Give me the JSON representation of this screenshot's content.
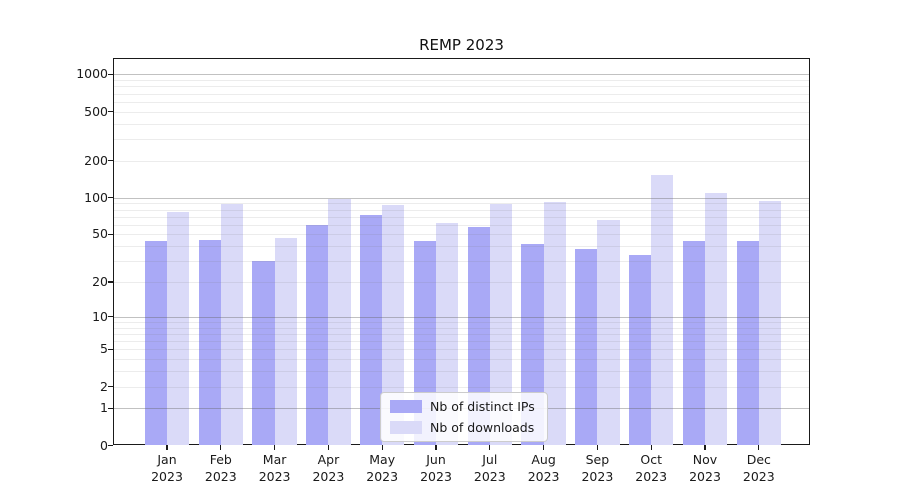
{
  "chart_data": {
    "type": "bar",
    "title": "REMP 2023",
    "categories": [
      "Jan",
      "Feb",
      "Mar",
      "Apr",
      "May",
      "Jun",
      "Jul",
      "Aug",
      "Sep",
      "Oct",
      "Nov",
      "Dec"
    ],
    "year_label": "2023",
    "series": [
      {
        "name": "Nb of distinct IPs",
        "color": "#a9a9f6",
        "values": [
          44,
          45,
          30,
          60,
          72,
          44,
          57,
          42,
          38,
          34,
          44,
          44
        ]
      },
      {
        "name": "Nb of downloads",
        "color": "#dadaf8",
        "values": [
          76,
          89,
          47,
          98,
          87,
          62,
          89,
          92,
          66,
          152,
          110,
          94
        ]
      }
    ],
    "y_scale": "symlog",
    "y_ticks": [
      1000,
      500,
      200,
      100,
      50,
      20,
      10,
      5,
      2,
      1,
      0
    ],
    "ylim": [
      0,
      1350
    ],
    "gridlines_major": [
      1,
      10,
      100,
      1000
    ],
    "gridlines_minor": [
      2,
      3,
      4,
      5,
      6,
      7,
      8,
      9,
      20,
      30,
      40,
      50,
      60,
      70,
      80,
      90,
      200,
      300,
      400,
      500,
      600,
      700,
      800,
      900
    ],
    "grid": "on",
    "legend_position": "bottom-center",
    "axis_color": "#1a1a1a",
    "background_color": "#ffffff"
  }
}
